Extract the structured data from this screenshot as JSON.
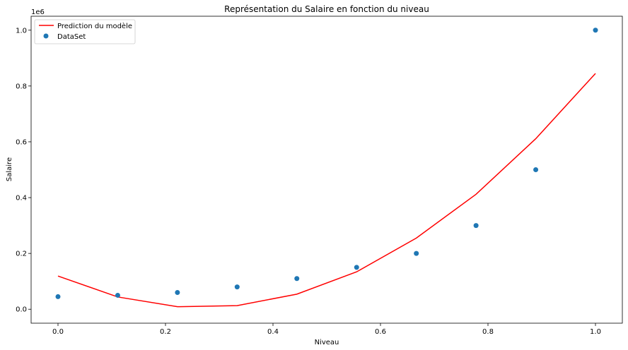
{
  "chart_data": {
    "type": "scatter",
    "title": "Représentation du Salaire en fonction du niveau",
    "xlabel": "Niveau",
    "ylabel": "Salaire",
    "y_offset_label": "1e6",
    "xlim": [
      -0.05,
      1.05
    ],
    "ylim": [
      -0.05,
      1.05
    ],
    "x_ticks": [
      0.0,
      0.2,
      0.4,
      0.6,
      0.8,
      1.0
    ],
    "x_tick_labels": [
      "0.0",
      "0.2",
      "0.4",
      "0.6",
      "0.8",
      "1.0"
    ],
    "y_ticks": [
      0.0,
      0.2,
      0.4,
      0.6,
      0.8,
      1.0
    ],
    "y_tick_labels": [
      "0.0",
      "0.2",
      "0.4",
      "0.6",
      "0.8",
      "1.0"
    ],
    "grid": false,
    "legend_position": "top-left",
    "series": [
      {
        "name": "Prediction du modèle",
        "kind": "line",
        "color": "#ff0000",
        "x": [
          0.0,
          0.1111,
          0.2222,
          0.3333,
          0.4444,
          0.5556,
          0.6667,
          0.7778,
          0.8889,
          1.0
        ],
        "y": [
          0.119,
          0.044,
          0.009,
          0.013,
          0.054,
          0.134,
          0.255,
          0.412,
          0.611,
          0.845
        ]
      },
      {
        "name": "DataSet",
        "kind": "scatter",
        "color": "#1f77b4",
        "x": [
          0.0,
          0.1111,
          0.2222,
          0.3333,
          0.4444,
          0.5556,
          0.6667,
          0.7778,
          0.8889,
          1.0
        ],
        "y": [
          0.045,
          0.05,
          0.06,
          0.08,
          0.11,
          0.15,
          0.2,
          0.3,
          0.5,
          1.0
        ]
      }
    ]
  }
}
